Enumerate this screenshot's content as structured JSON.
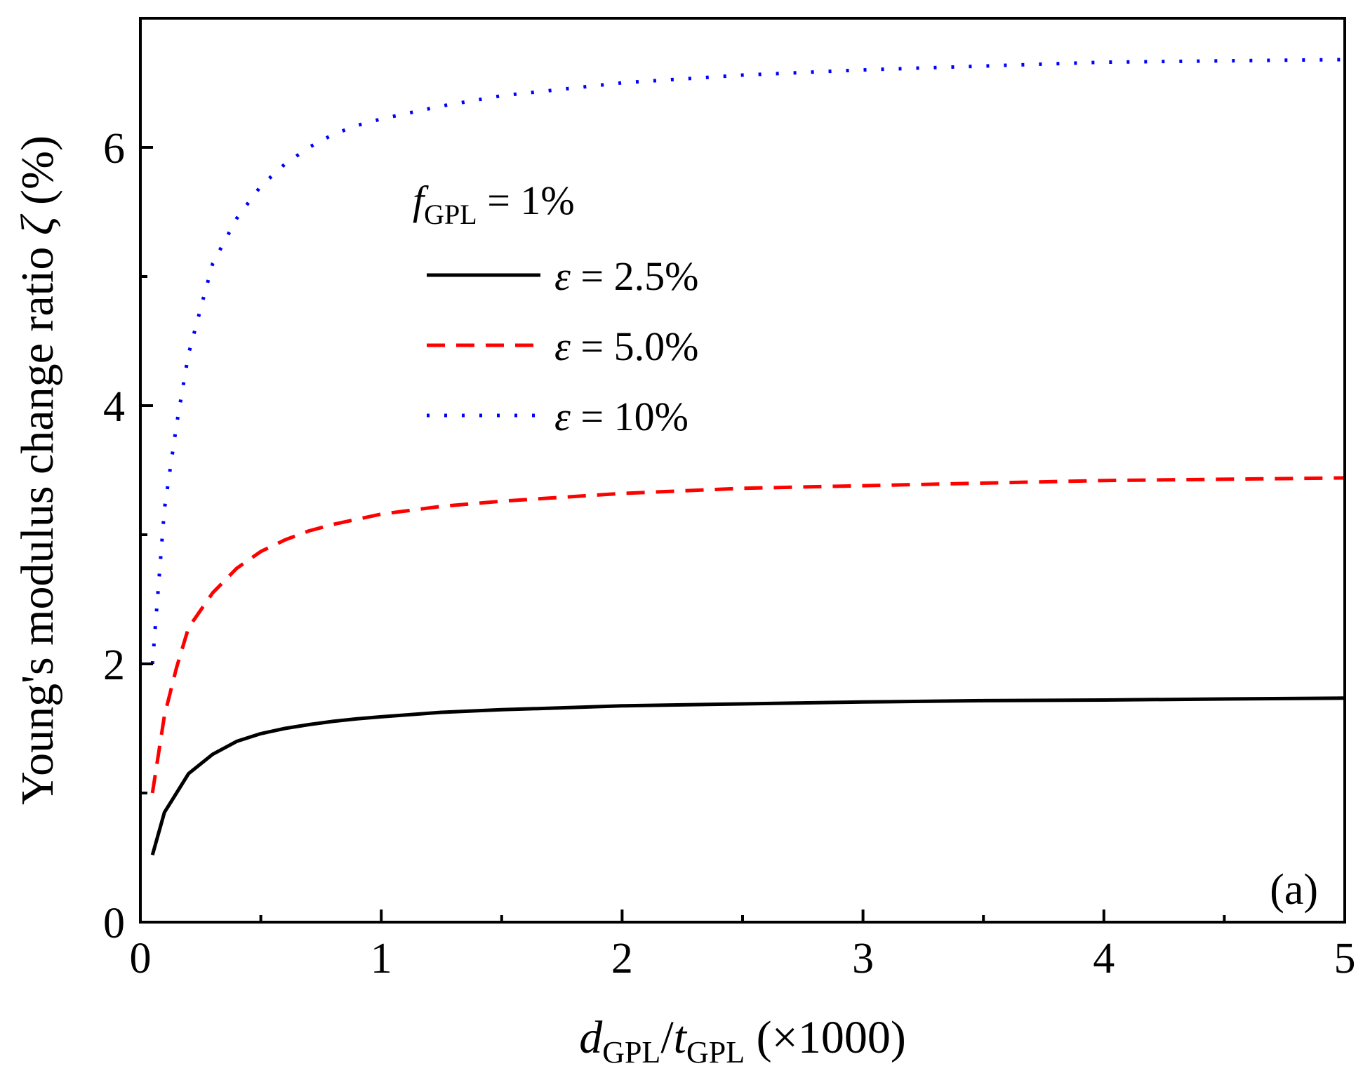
{
  "chart_data": {
    "type": "line",
    "panel_label": "(a)",
    "xlabel": {
      "var": "d",
      "sub1": "GPL",
      "sep": "/",
      "var2": "t",
      "sub2": "GPL",
      "suffix": " (×1000)"
    },
    "ylabel": {
      "text": "Young's modulus change ratio ",
      "symbol": "ζ",
      "unit": " (%)"
    },
    "xlim": [
      0,
      5
    ],
    "ylim": [
      0,
      7
    ],
    "x_ticks": [
      0,
      1,
      2,
      3,
      4,
      5
    ],
    "x_tick_labels": [
      "0",
      "1",
      "2",
      "3",
      "4",
      "5"
    ],
    "y_ticks": [
      0,
      2,
      4,
      6
    ],
    "y_tick_labels": [
      "0",
      "2",
      "4",
      "6"
    ],
    "x_minor_step": 0.5,
    "y_minor_step": 1,
    "grid": false,
    "legend": {
      "position": "upper-left",
      "title": {
        "var": "f",
        "sub": "GPL",
        "rest": " = 1%"
      }
    },
    "x": [
      0.05,
      0.1,
      0.15,
      0.2,
      0.3,
      0.4,
      0.5,
      0.6,
      0.7,
      0.8,
      0.9,
      1.0,
      1.25,
      1.5,
      1.75,
      2.0,
      2.5,
      3.0,
      3.5,
      4.0,
      4.5,
      5.0
    ],
    "series": [
      {
        "name": "ε = 2.5%",
        "label_symbol": "ε",
        "label_rest": " = 2.5%",
        "color": "#000000",
        "style": "solid",
        "values": [
          0.52,
          0.85,
          1.0,
          1.15,
          1.3,
          1.4,
          1.46,
          1.5,
          1.53,
          1.555,
          1.575,
          1.59,
          1.625,
          1.645,
          1.66,
          1.675,
          1.69,
          1.705,
          1.715,
          1.72,
          1.728,
          1.735
        ]
      },
      {
        "name": "ε = 5.0%",
        "label_symbol": "ε",
        "label_rest": " = 5.0%",
        "color": "#ff0000",
        "style": "dashed",
        "values": [
          1.0,
          1.6,
          1.97,
          2.28,
          2.55,
          2.74,
          2.87,
          2.96,
          3.03,
          3.08,
          3.12,
          3.16,
          3.22,
          3.26,
          3.29,
          3.32,
          3.36,
          3.38,
          3.4,
          3.42,
          3.43,
          3.44
        ]
      },
      {
        "name": "ε = 10%",
        "label_symbol": "ε",
        "label_rest": " = 10%",
        "color": "#0000ff",
        "style": "dotted",
        "values": [
          2.0,
          3.2,
          3.85,
          4.4,
          5.1,
          5.45,
          5.7,
          5.87,
          6.0,
          6.1,
          6.17,
          6.22,
          6.32,
          6.4,
          6.45,
          6.5,
          6.56,
          6.6,
          6.63,
          6.66,
          6.67,
          6.68
        ]
      }
    ]
  }
}
